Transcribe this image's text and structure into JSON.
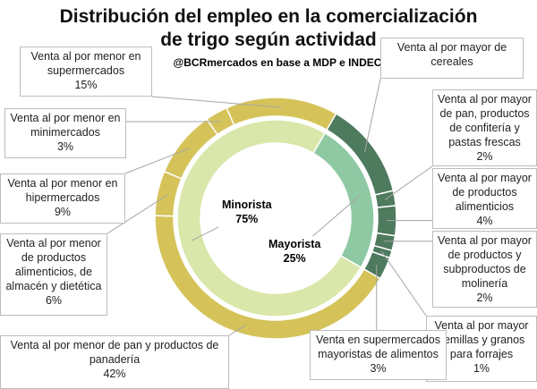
{
  "chart_data": {
    "type": "donut",
    "title": "Distribución del empleo en la comercialización de trigo según actividad",
    "subtitle": "@BCRmercados  en base a MDP e INDEC",
    "inner": {
      "categories": [
        "Mayorista",
        "Minorista"
      ],
      "values": [
        25,
        75
      ],
      "value_labels": [
        "25%",
        "75%"
      ],
      "colors": [
        "#8ec9a3",
        "#d9e7aa"
      ]
    },
    "outer": {
      "categories": [
        "Venta al por mayor de cereales",
        "Venta al por mayor de pan, productos de confitería y pastas frescas",
        "Venta al por mayor de productos alimenticios",
        "Venta al por mayor de productos y subproductos de molinería",
        "Venta al por mayor semillas y granos para forrajes",
        "Venta en supermercados mayoristas de alimentos",
        "Venta al por menor de pan y productos de panadería",
        "Venta al por menor de productos alimenticios, de almacén y dietética",
        "Venta al por menor en hipermercados",
        "Venta al por menor en minimercados",
        "Venta al por menor en supermercados"
      ],
      "values": [
        13,
        2,
        4,
        2,
        1,
        3,
        42,
        6,
        9,
        3,
        15
      ],
      "value_labels": [
        null,
        "2%",
        "4%",
        "2%",
        "1%",
        "3%",
        "42%",
        "6%",
        "9%",
        "3%",
        "15%"
      ],
      "colors": [
        "#4e7a5d",
        "#4e7a5d",
        "#4e7a5d",
        "#4e7a5d",
        "#4e7a5d",
        "#4e7a5d",
        "#d5c35a",
        "#d5c35a",
        "#d5c35a",
        "#d5c35a",
        "#d5c35a"
      ]
    }
  }
}
